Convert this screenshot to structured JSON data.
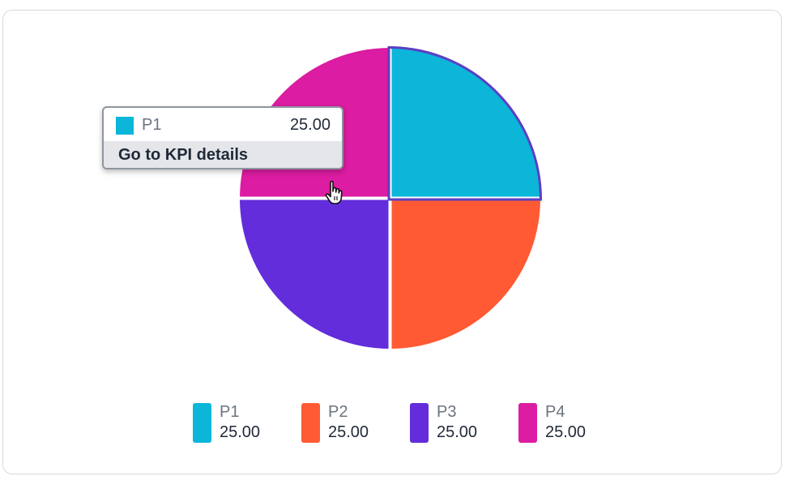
{
  "chart_data": {
    "type": "pie",
    "title": "",
    "slices": [
      {
        "name": "P1",
        "value": 25.0,
        "label": "25.00",
        "color": "#0bb6d9"
      },
      {
        "name": "P2",
        "value": 25.0,
        "label": "25.00",
        "color": "#ff5a33"
      },
      {
        "name": "P3",
        "value": 25.0,
        "label": "25.00",
        "color": "#632ddb"
      },
      {
        "name": "P4",
        "value": 25.0,
        "label": "25.00",
        "color": "#dc1ca2"
      }
    ],
    "legend_position": "bottom",
    "highlighted_slice": "P1",
    "highlight_outline_color": "#5b3fc4"
  },
  "tooltip": {
    "series_name": "P1",
    "value": "25.00",
    "swatch_color": "#0bb6d9",
    "link_label": "Go to KPI details"
  },
  "legend": {
    "items": [
      {
        "name": "P1",
        "value": "25.00",
        "color": "#0bb6d9"
      },
      {
        "name": "P2",
        "value": "25.00",
        "color": "#ff5a33"
      },
      {
        "name": "P3",
        "value": "25.00",
        "color": "#632ddb"
      },
      {
        "name": "P4",
        "value": "25.00",
        "color": "#dc1ca2"
      }
    ]
  }
}
